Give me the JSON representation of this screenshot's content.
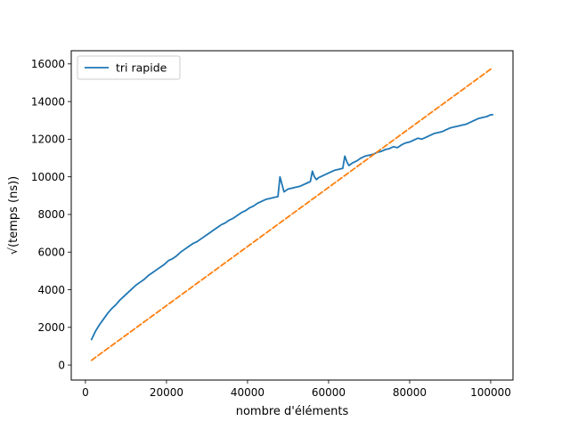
{
  "chart_data": {
    "type": "line",
    "title": "",
    "xlabel": "nombre d'éléments",
    "ylabel": "√(temps (ns))",
    "xlim": [
      -3500,
      105500
    ],
    "ylim": [
      -800,
      16700
    ],
    "xticks": [
      0,
      20000,
      40000,
      60000,
      80000,
      100000
    ],
    "yticks": [
      0,
      2000,
      4000,
      6000,
      8000,
      10000,
      12000,
      14000,
      16000
    ],
    "legend": {
      "placement": "upper-left",
      "entries": [
        "tri rapide"
      ]
    },
    "grid": false,
    "series": [
      {
        "name": "tri rapide",
        "style": "solid",
        "color": "#1f77b4",
        "x": [
          1500,
          2500,
          3500,
          4500,
          5500,
          6500,
          7500,
          8500,
          9500,
          10500,
          11500,
          12500,
          13500,
          14500,
          15500,
          16500,
          17500,
          18500,
          19500,
          20500,
          21500,
          22500,
          23500,
          24500,
          25500,
          26500,
          27500,
          28500,
          29500,
          30500,
          31500,
          32500,
          33500,
          34500,
          35500,
          36500,
          37500,
          38500,
          39500,
          40500,
          41500,
          42500,
          43500,
          44500,
          45500,
          46500,
          47500,
          48000,
          48500,
          49000,
          50000,
          51000,
          52000,
          53000,
          54000,
          55000,
          55500,
          56000,
          56500,
          57000,
          57500,
          58500,
          59500,
          60500,
          61500,
          62500,
          63500,
          64000,
          64500,
          65000,
          66000,
          67000,
          68000,
          69000,
          70000,
          71000,
          72000,
          73000,
          74000,
          75000,
          76000,
          77000,
          78000,
          79000,
          80000,
          81000,
          82000,
          83000,
          84000,
          85000,
          86000,
          87000,
          88000,
          89000,
          90000,
          91000,
          92000,
          93000,
          94000,
          95000,
          96000,
          97000,
          98000,
          99000,
          100000,
          100500
        ],
        "y": [
          1350,
          1800,
          2150,
          2450,
          2750,
          3000,
          3200,
          3450,
          3650,
          3850,
          4050,
          4250,
          4400,
          4550,
          4750,
          4900,
          5050,
          5200,
          5350,
          5550,
          5650,
          5800,
          6000,
          6150,
          6300,
          6450,
          6550,
          6700,
          6850,
          7000,
          7150,
          7300,
          7450,
          7550,
          7700,
          7800,
          7950,
          8100,
          8200,
          8350,
          8450,
          8600,
          8700,
          8800,
          8850,
          8900,
          8950,
          10000,
          9600,
          9200,
          9350,
          9400,
          9450,
          9500,
          9600,
          9700,
          9750,
          10300,
          10000,
          9850,
          9950,
          10050,
          10150,
          10250,
          10350,
          10400,
          10450,
          11100,
          10800,
          10600,
          10750,
          10850,
          11000,
          11100,
          11150,
          11200,
          11300,
          11350,
          11450,
          11500,
          11600,
          11550,
          11700,
          11800,
          11850,
          11950,
          12050,
          12000,
          12100,
          12200,
          12300,
          12350,
          12400,
          12500,
          12600,
          12650,
          12700,
          12750,
          12800,
          12900,
          13000,
          13100,
          13150,
          13200,
          13300,
          13300
        ]
      },
      {
        "name": "",
        "style": "dashed",
        "color": "#ff7f0e",
        "x": [
          1500,
          100500
        ],
        "y": [
          250,
          15800
        ]
      }
    ]
  }
}
